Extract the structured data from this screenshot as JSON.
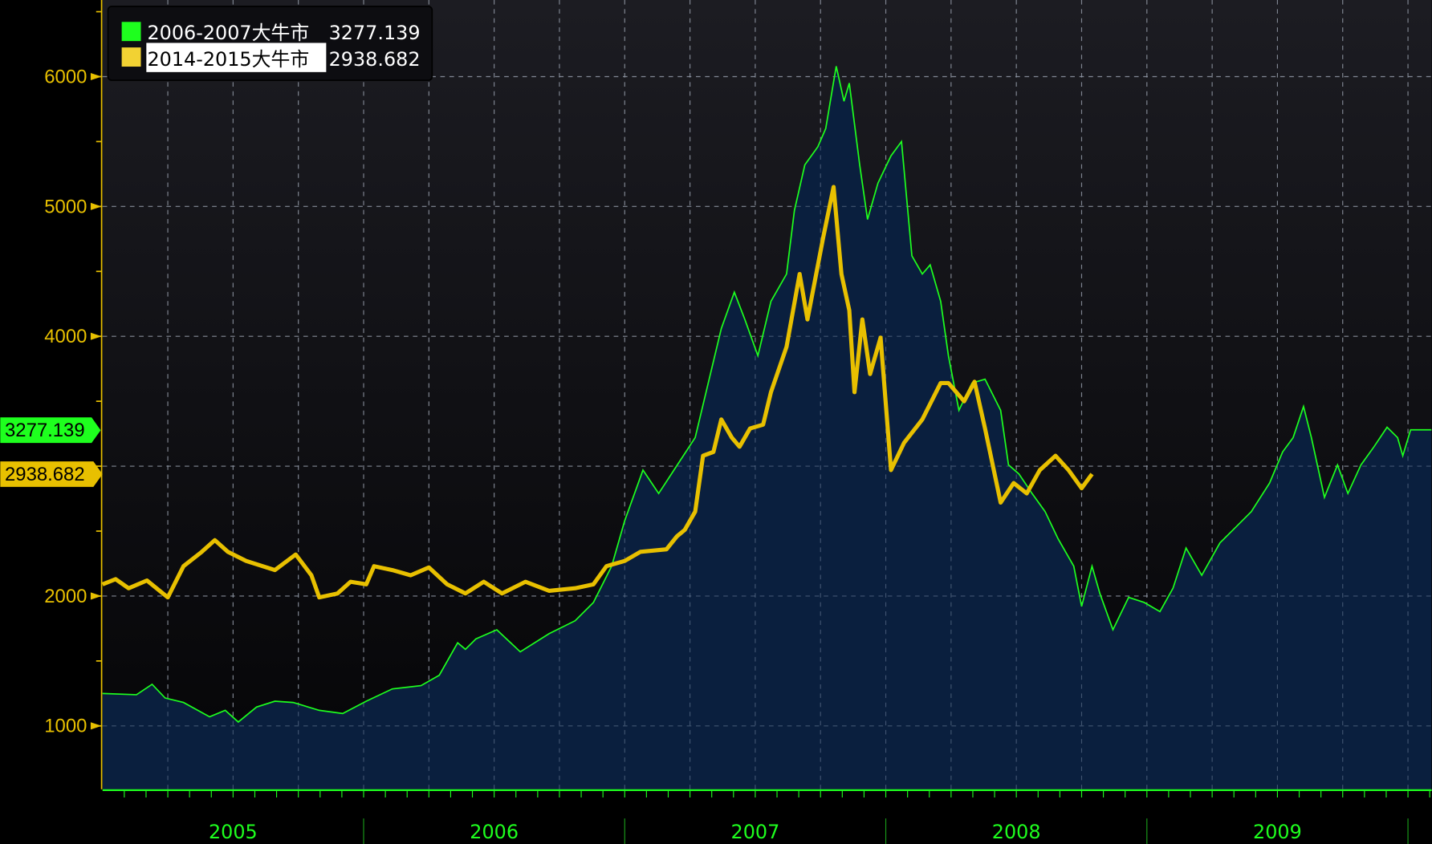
{
  "chart_data": {
    "type": "line",
    "title": "",
    "xlabel": "",
    "ylabel": "",
    "xlim": [
      2005.0,
      2010.09
    ],
    "ylim": [
      512,
      6590
    ],
    "yticks": [
      1000,
      2000,
      4000,
      5000,
      6000
    ],
    "grid_y": [
      1000,
      2000,
      3000,
      4000,
      5000,
      6000
    ],
    "grid": true,
    "xtick_labels": [
      {
        "label": "2005",
        "year": 2005
      },
      {
        "label": "2006",
        "year": 2006
      },
      {
        "label": "2007",
        "year": 2007
      },
      {
        "label": "2008",
        "year": 2008
      },
      {
        "label": "2009",
        "year": 2009
      }
    ],
    "legend_position": "top-left",
    "series": [
      {
        "name": "2006-2007大牛市",
        "last_value": "3277.139",
        "color": "#1eff1e",
        "style": "area",
        "x": [
          2005.0,
          2005.13,
          2005.19,
          2005.24,
          2005.31,
          2005.41,
          2005.47,
          2005.52,
          2005.59,
          2005.66,
          2005.73,
          2005.83,
          2005.92,
          2006.01,
          2006.11,
          2006.22,
          2006.29,
          2006.36,
          2006.39,
          2006.43,
          2006.51,
          2006.6,
          2006.71,
          2006.81,
          2006.88,
          2006.95,
          2007.0,
          2007.07,
          2007.13,
          2007.2,
          2007.27,
          2007.32,
          2007.37,
          2007.42,
          2007.46,
          2007.51,
          2007.56,
          2007.62,
          2007.65,
          2007.69,
          2007.74,
          2007.77,
          2007.81,
          2007.84,
          2007.86,
          2007.9,
          2007.93,
          2007.97,
          2008.02,
          2008.06,
          2008.1,
          2008.14,
          2008.17,
          2008.21,
          2008.24,
          2008.28,
          2008.33,
          2008.38,
          2008.44,
          2008.47,
          2008.51,
          2008.56,
          2008.61,
          2008.66,
          2008.72,
          2008.75,
          2008.79,
          2008.82,
          2008.87,
          2008.93,
          2008.99,
          2009.05,
          2009.1,
          2009.15,
          2009.21,
          2009.28,
          2009.33,
          2009.4,
          2009.47,
          2009.52,
          2009.56,
          2009.6,
          2009.63,
          2009.68,
          2009.73,
          2009.77,
          2009.82,
          2009.87,
          2009.92,
          2009.96,
          2009.98,
          2010.01,
          2010.09
        ],
        "values": [
          1250,
          1240,
          1320,
          1215,
          1180,
          1070,
          1120,
          1030,
          1145,
          1190,
          1180,
          1120,
          1095,
          1190,
          1285,
          1310,
          1390,
          1640,
          1590,
          1670,
          1740,
          1570,
          1710,
          1810,
          1950,
          2230,
          2580,
          2970,
          2790,
          3005,
          3220,
          3640,
          4060,
          4340,
          4130,
          3850,
          4270,
          4480,
          4970,
          5320,
          5460,
          5600,
          6080,
          5810,
          5950,
          5320,
          4900,
          5180,
          5390,
          5500,
          4620,
          4480,
          4550,
          4270,
          3850,
          3430,
          3640,
          3670,
          3430,
          3010,
          2940,
          2790,
          2650,
          2440,
          2230,
          1920,
          2230,
          2020,
          1740,
          1990,
          1950,
          1880,
          2060,
          2370,
          2160,
          2410,
          2510,
          2650,
          2870,
          3110,
          3220,
          3460,
          3220,
          2760,
          3010,
          2790,
          3010,
          3150,
          3300,
          3220,
          3080,
          3280,
          3280
        ]
      },
      {
        "name": "2014-2015大牛市",
        "last_value": "2938.682",
        "color": "#e8c000",
        "style": "line",
        "x": [
          2005.0,
          2005.05,
          2005.1,
          2005.17,
          2005.25,
          2005.31,
          2005.38,
          2005.43,
          2005.48,
          2005.55,
          2005.66,
          2005.74,
          2005.8,
          2005.83,
          2005.9,
          2005.95,
          2006.01,
          2006.04,
          2006.11,
          2006.18,
          2006.25,
          2006.32,
          2006.39,
          2006.46,
          2006.53,
          2006.62,
          2006.71,
          2006.81,
          2006.88,
          2006.93,
          2007.0,
          2007.06,
          2007.16,
          2007.2,
          2007.23,
          2007.27,
          2007.3,
          2007.34,
          2007.37,
          2007.41,
          2007.44,
          2007.48,
          2007.53,
          2007.56,
          2007.62,
          2007.67,
          2007.7,
          2007.76,
          2007.8,
          2007.83,
          2007.86,
          2007.88,
          2007.91,
          2007.94,
          2007.98,
          2008.02,
          2008.07,
          2008.14,
          2008.21,
          2008.24,
          2008.3,
          2008.34,
          2008.38,
          2008.44,
          2008.49,
          2008.54,
          2008.59,
          2008.65,
          2008.7,
          2008.75,
          2008.79
        ],
        "values": [
          2090,
          2130,
          2060,
          2120,
          1990,
          2230,
          2340,
          2430,
          2340,
          2270,
          2200,
          2320,
          2160,
          1990,
          2020,
          2110,
          2090,
          2230,
          2200,
          2160,
          2220,
          2090,
          2020,
          2110,
          2020,
          2110,
          2040,
          2060,
          2090,
          2230,
          2270,
          2340,
          2360,
          2460,
          2510,
          2650,
          3080,
          3110,
          3360,
          3220,
          3150,
          3290,
          3320,
          3570,
          3920,
          4480,
          4130,
          4760,
          5150,
          4480,
          4200,
          3570,
          4130,
          3710,
          3990,
          2970,
          3180,
          3360,
          3640,
          3640,
          3500,
          3650,
          3290,
          2720,
          2870,
          2790,
          2970,
          3080,
          2970,
          2830,
          2940
        ]
      }
    ]
  }
}
